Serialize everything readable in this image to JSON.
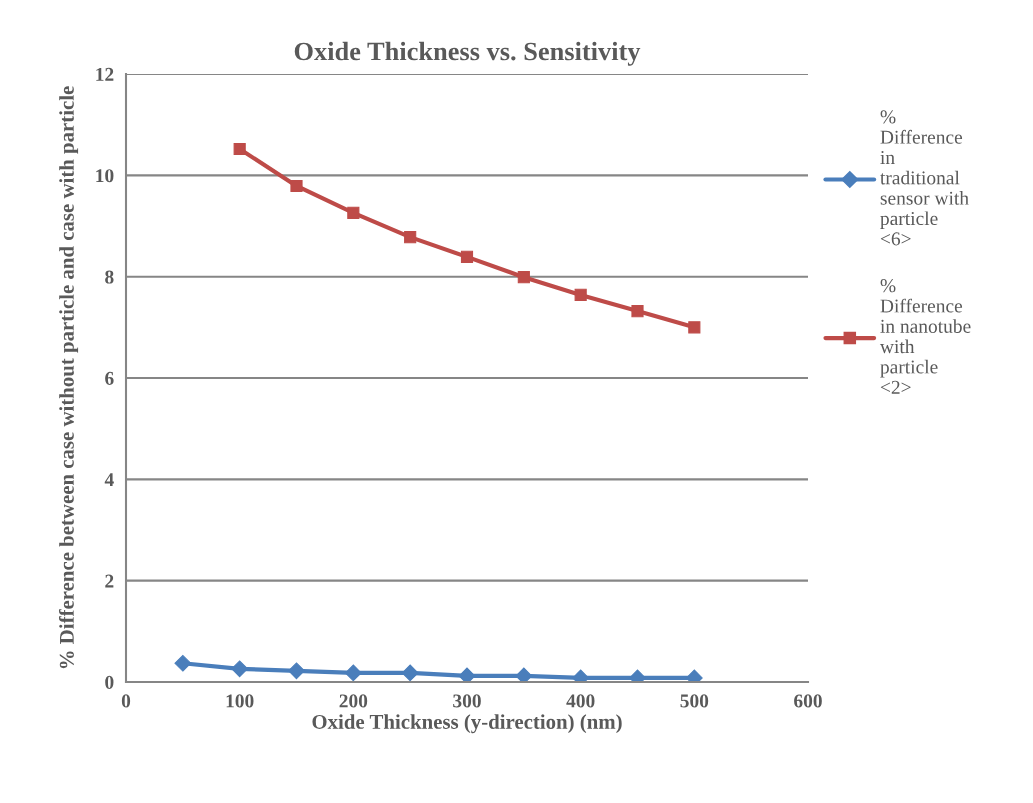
{
  "chart_data": {
    "type": "line",
    "title": "Oxide Thickness vs. Sensitivity",
    "xlabel": "Oxide Thickness (y-direction) (nm)",
    "ylabel": "% Difference between case without particle and case with particle",
    "xlim": [
      0,
      600
    ],
    "xticks": [
      0,
      100,
      200,
      300,
      400,
      500,
      600
    ],
    "ylim": [
      0,
      12
    ],
    "yticks": [
      0,
      2,
      4,
      6,
      8,
      10,
      12
    ],
    "grid": "y",
    "legend": "right",
    "series": [
      {
        "name": "% Difference in traditional sensor with particle <6>",
        "color": "#4a7ebb",
        "marker": "diamond",
        "x": [
          50,
          100,
          150,
          200,
          250,
          300,
          350,
          400,
          450,
          500
        ],
        "values": [
          0.37,
          0.26,
          0.22,
          0.18,
          0.18,
          0.12,
          0.12,
          0.08,
          0.08,
          0.08
        ]
      },
      {
        "name": "% Difference in nanotube with particle <2>",
        "color": "#be4b48",
        "marker": "square",
        "x": [
          100,
          150,
          200,
          250,
          300,
          350,
          400,
          450,
          500
        ],
        "values": [
          10.52,
          9.79,
          9.26,
          8.78,
          8.39,
          7.99,
          7.64,
          7.32,
          7.0
        ]
      }
    ]
  }
}
